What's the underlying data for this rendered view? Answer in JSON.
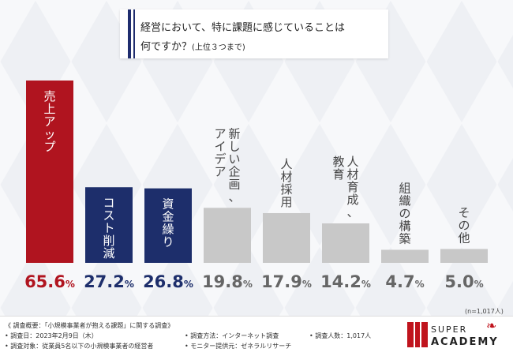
{
  "title": {
    "line1": "経営において、特に課題に感じていることは",
    "line2": "何ですか？",
    "line2_small": "(上位３つまで)"
  },
  "chart_data": {
    "type": "bar",
    "categories": [
      "売上アップ",
      "コスト削減",
      "資金繰り",
      "新しい企画、アイデア",
      "人材採用",
      "人材育成、教育",
      "組織の構築",
      "その他"
    ],
    "values": [
      65.6,
      27.2,
      26.8,
      19.8,
      17.9,
      14.2,
      4.7,
      5.0
    ],
    "value_labels": [
      "65.6%",
      "27.2%",
      "26.8%",
      "19.8%",
      "17.9%",
      "14.2%",
      "4.7%",
      "5.0%"
    ],
    "category_label_lines": [
      [
        "売上アップ"
      ],
      [
        "コスト削減"
      ],
      [
        "資金繰り"
      ],
      [
        "新しい企画、",
        "アイデア"
      ],
      [
        "人材採用"
      ],
      [
        "人材育成、",
        "教育"
      ],
      [
        "組織の構築"
      ],
      [
        "その他"
      ]
    ],
    "bar_colors": [
      "#b0141f",
      "#1d2e6b",
      "#1d2e6b",
      "#c8c8c8",
      "#c8c8c8",
      "#c8c8c8",
      "#c8c8c8",
      "#c8c8c8"
    ],
    "value_label_colors": [
      "#b0141f",
      "#1d2e6b",
      "#1d2e6b",
      "#666666",
      "#666666",
      "#666666",
      "#666666",
      "#666666"
    ],
    "category_label_colors": [
      "#ffffff",
      "#ffffff",
      "#ffffff",
      "#444444",
      "#444444",
      "#444444",
      "#444444",
      "#444444"
    ],
    "category_label_inside": [
      true,
      true,
      true,
      false,
      false,
      false,
      false,
      false
    ],
    "ylim": [
      0,
      70
    ],
    "sample_note": "(n=1,017人)"
  },
  "footer": {
    "line1": "《 調査概要：「小規模事業者が抱える課題」に関する調査》",
    "date": "• 調査日：2023年2月9日（木）",
    "target": "• 調査対象：従業員5名以下の小規模事業者の経営者",
    "method": "• 調査方法：インターネット調査",
    "provider": "• モニター提供元：ゼネラルリサーチ",
    "count": "• 調査人数：1,017人"
  },
  "logo": {
    "super": "SUPER",
    "academy": "ACADEMY",
    "color": "#c0141d"
  }
}
